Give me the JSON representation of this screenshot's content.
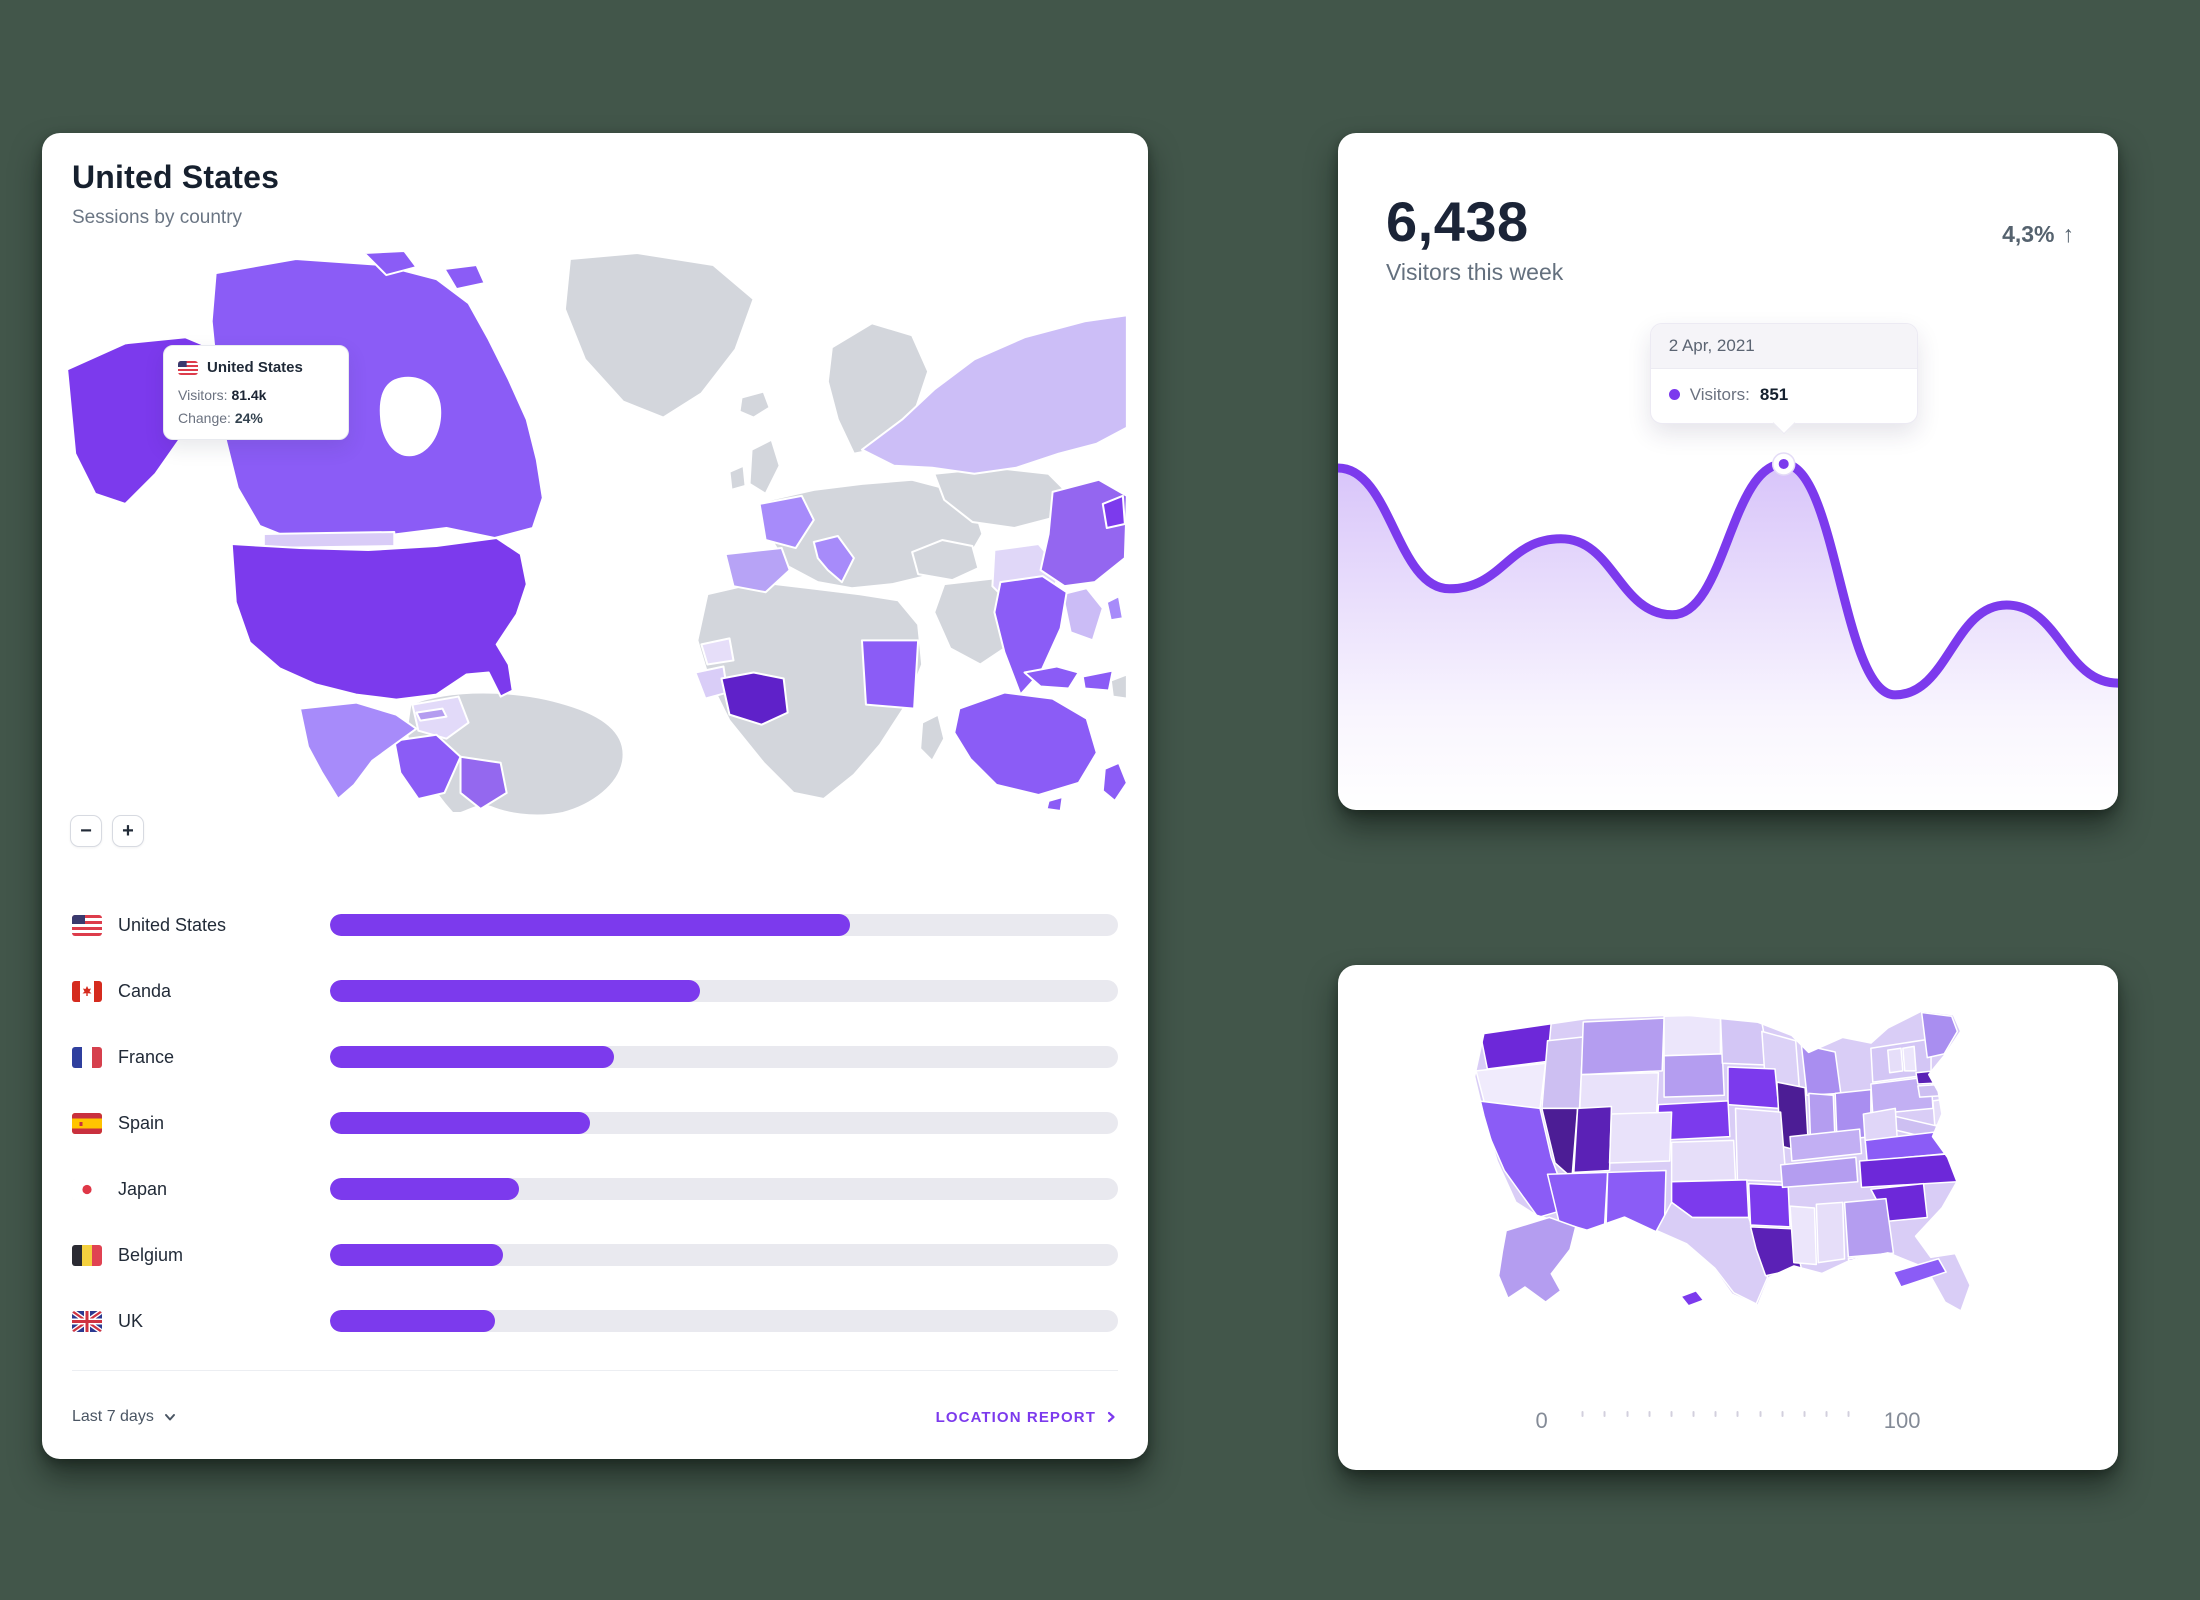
{
  "colors": {
    "accent": "#7c3aed",
    "accent_dark": "#5b21b6",
    "map_gray": "#d3d6dc",
    "bar_track": "#e9e9ef",
    "background": "#42564a"
  },
  "left_card": {
    "title": "United States",
    "subtitle": "Sessions by country",
    "map_tooltip": {
      "flag": "us",
      "country": "United States",
      "visitors_label": "Visitors:",
      "visitors_value": "81.4k",
      "change_label": "Change:",
      "change_value": "24%"
    },
    "zoom_out": "−",
    "zoom_in": "+",
    "countries": [
      {
        "flag": "us",
        "name": "United States",
        "pct": 66
      },
      {
        "flag": "ca",
        "name": "Canda",
        "pct": 47
      },
      {
        "flag": "fr",
        "name": "France",
        "pct": 36
      },
      {
        "flag": "es",
        "name": "Spain",
        "pct": 33
      },
      {
        "flag": "jp",
        "name": "Japan",
        "pct": 24
      },
      {
        "flag": "be",
        "name": "Belgium",
        "pct": 22
      },
      {
        "flag": "uk",
        "name": "UK",
        "pct": 21
      }
    ],
    "footer": {
      "range_label": "Last 7 days",
      "report_label": "LOCATION REPORT"
    }
  },
  "visitors_card": {
    "value": "6,438",
    "label": "Visitors this week",
    "delta": "4,3%",
    "delta_dir": "↑",
    "tooltip": {
      "date": "2 Apr, 2021",
      "series_label": "Visitors:",
      "series_value": "851"
    }
  },
  "us_map_card": {
    "legend_min": "0",
    "legend_max": "100"
  },
  "chart_data": [
    {
      "type": "area",
      "title": "Visitors this week",
      "total": "6,438",
      "delta_pct": "4,3%",
      "series": [
        {
          "name": "Visitors",
          "values": [
            841,
            544,
            667,
            480,
            851,
            283,
            504,
            312
          ]
        }
      ],
      "highlight": {
        "index": 4,
        "x_label": "2 Apr, 2021",
        "value": 851
      },
      "ylim": [
        0,
        1173
      ],
      "grid": false,
      "legend_position": "none"
    },
    {
      "type": "bar",
      "title": "Sessions by country",
      "categories": [
        "United States",
        "Canda",
        "France",
        "Spain",
        "Japan",
        "Belgium",
        "UK"
      ],
      "values": [
        66,
        47,
        36,
        33,
        24,
        22,
        21
      ],
      "unit": "percent of track width",
      "tooltip_datum": {
        "country": "United States",
        "visitors": "81.4k",
        "change": "24%"
      }
    },
    {
      "type": "heatmap",
      "title": "Sessions by US state (choropleth)",
      "scale_min": 0,
      "scale_max": 100,
      "high_states": [
        "NV",
        "UT",
        "IL",
        "NC",
        "SC",
        "MA",
        "WA",
        "LA",
        "FL",
        "IA",
        "NE",
        "OK",
        "AR"
      ],
      "medium_states": [
        "CA",
        "AZ",
        "NM",
        "MT",
        "SD",
        "MI",
        "OH",
        "TN",
        "VA",
        "GA",
        "ME",
        "AK"
      ],
      "low_states": [
        "OR",
        "WY",
        "CO",
        "KS",
        "MO",
        "TX",
        "ND",
        "MS",
        "AL",
        "NH",
        "VT"
      ]
    }
  ]
}
